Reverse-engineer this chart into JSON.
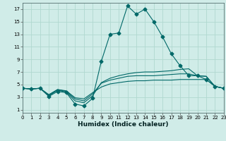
{
  "xlabel": "Humidex (Indice chaleur)",
  "bg_color": "#d0ece8",
  "grid_color": "#b0d8d0",
  "line_color": "#006868",
  "x_ticks": [
    0,
    1,
    2,
    3,
    4,
    5,
    6,
    7,
    8,
    9,
    10,
    11,
    12,
    13,
    14,
    15,
    16,
    17,
    18,
    19,
    20,
    21,
    22,
    23
  ],
  "y_ticks": [
    1,
    3,
    5,
    7,
    9,
    11,
    13,
    15,
    17
  ],
  "xlim": [
    0,
    23
  ],
  "ylim": [
    0.5,
    18.0
  ],
  "series": [
    {
      "x": [
        0,
        1,
        2,
        3,
        4,
        5,
        6,
        7,
        8,
        9,
        10,
        11,
        12,
        13,
        14,
        15,
        16,
        17,
        18,
        19,
        20,
        21,
        22,
        23
      ],
      "y": [
        4.4,
        4.3,
        4.4,
        3.1,
        3.9,
        3.7,
        1.9,
        1.6,
        2.8,
        8.7,
        13.0,
        13.2,
        17.5,
        16.2,
        17.0,
        15.0,
        12.6,
        9.9,
        8.0,
        6.4,
        6.4,
        5.8,
        4.7,
        4.4
      ],
      "marker": "D",
      "markersize": 2.5
    },
    {
      "x": [
        0,
        1,
        2,
        3,
        4,
        5,
        6,
        7,
        8,
        9,
        10,
        11,
        12,
        13,
        14,
        15,
        16,
        17,
        18,
        19,
        20,
        21,
        22,
        23
      ],
      "y": [
        4.4,
        4.3,
        4.4,
        3.2,
        4.1,
        3.8,
        2.4,
        2.1,
        3.2,
        5.3,
        6.0,
        6.4,
        6.7,
        6.9,
        7.0,
        7.0,
        7.1,
        7.2,
        7.4,
        7.5,
        6.4,
        6.3,
        4.7,
        4.4
      ],
      "marker": null,
      "markersize": null
    },
    {
      "x": [
        0,
        1,
        2,
        3,
        4,
        5,
        6,
        7,
        8,
        9,
        10,
        11,
        12,
        13,
        14,
        15,
        16,
        17,
        18,
        19,
        20,
        21,
        22,
        23
      ],
      "y": [
        4.4,
        4.3,
        4.4,
        3.3,
        4.2,
        3.9,
        2.7,
        2.4,
        3.5,
        5.2,
        5.7,
        6.0,
        6.3,
        6.4,
        6.4,
        6.4,
        6.5,
        6.6,
        6.7,
        6.7,
        6.4,
        6.3,
        4.7,
        4.4
      ],
      "marker": null,
      "markersize": null
    },
    {
      "x": [
        0,
        1,
        2,
        3,
        4,
        5,
        6,
        7,
        8,
        9,
        10,
        11,
        12,
        13,
        14,
        15,
        16,
        17,
        18,
        19,
        20,
        21,
        22,
        23
      ],
      "y": [
        4.4,
        4.3,
        4.4,
        3.4,
        4.2,
        4.0,
        2.9,
        2.7,
        3.7,
        4.6,
        5.1,
        5.3,
        5.5,
        5.6,
        5.6,
        5.7,
        5.7,
        5.7,
        5.8,
        5.8,
        5.8,
        5.8,
        4.7,
        4.4
      ],
      "marker": null,
      "markersize": null
    }
  ]
}
